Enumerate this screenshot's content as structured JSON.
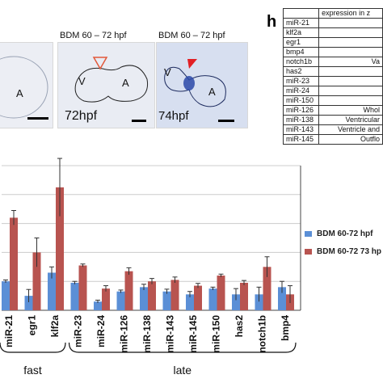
{
  "panels": {
    "p1": {
      "chamber": "A"
    },
    "p2": {
      "title": "BDM 60 – 72 hpf",
      "chamber_v": "V",
      "chamber_a": "A",
      "time": "72hpf"
    },
    "p3": {
      "title": "BDM 60 – 72 hpf",
      "chamber_v": "V",
      "chamber_a": "A",
      "time": "74hpf"
    }
  },
  "table_panel": {
    "letter": "h",
    "header": "expression in z",
    "rows": [
      {
        "gene": "miR-21",
        "expression": ""
      },
      {
        "gene": "klf2a",
        "expression": ""
      },
      {
        "gene": "egr1",
        "expression": ""
      },
      {
        "gene": "bmp4",
        "expression": ""
      },
      {
        "gene": "notch1b",
        "expression": "Va"
      },
      {
        "gene": "has2",
        "expression": ""
      },
      {
        "gene": "miR-23",
        "expression": ""
      },
      {
        "gene": "miR-24",
        "expression": ""
      },
      {
        "gene": "miR-150",
        "expression": ""
      },
      {
        "gene": "miR-126",
        "expression": "Whol"
      },
      {
        "gene": "miR-138",
        "expression": "Ventricular"
      },
      {
        "gene": "miR-143",
        "expression": "Ventricle and"
      },
      {
        "gene": "miR-145",
        "expression": "Outflo"
      }
    ]
  },
  "colors": {
    "blue": "#5b8fd6",
    "red": "#b85450",
    "axis": "#444444",
    "grid": "#cccccc"
  },
  "chart_data": {
    "type": "bar",
    "categories": [
      "miR-21",
      "egr1",
      "klf2a",
      "miR-23",
      "miR-24",
      "miR-126",
      "miR-138",
      "miR-143",
      "miR-145",
      "miR-150",
      "has2",
      "notch1b",
      "bmp4"
    ],
    "series": [
      {
        "name": "BDM 60-72 hpf",
        "values": [
          1.0,
          0.5,
          1.3,
          0.95,
          0.3,
          0.65,
          0.8,
          0.65,
          0.55,
          0.75,
          0.55,
          0.55,
          0.8
        ]
      },
      {
        "name": "BDM 60-72 73 hp",
        "values": [
          3.2,
          2.0,
          4.25,
          1.55,
          0.75,
          1.35,
          1.0,
          1.05,
          0.85,
          1.2,
          0.95,
          1.5,
          0.55
        ]
      }
    ],
    "errors": [
      [
        0.05,
        0.22,
        0.2,
        0.05,
        0.05,
        0.05,
        0.1,
        0.08,
        0.1,
        0.05,
        0.2,
        0.25,
        0.2
      ],
      [
        0.25,
        0.5,
        1.0,
        0.05,
        0.1,
        0.12,
        0.1,
        0.1,
        0.08,
        0.05,
        0.08,
        0.35,
        0.3
      ]
    ],
    "ylim": [
      0,
      5
    ],
    "groups": [
      {
        "label": "fast",
        "from": 0,
        "to": 2
      },
      {
        "label": "late",
        "from": 3,
        "to": 12
      }
    ],
    "grid": true,
    "legend_position": "right"
  }
}
